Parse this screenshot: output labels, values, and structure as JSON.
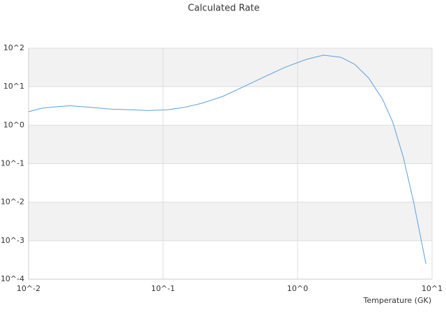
{
  "chart_data": {
    "type": "line",
    "title": "Calculated Rate",
    "x_label": "Temperature (GK)",
    "xscale": "log",
    "yscale": "log",
    "grid": true,
    "xlim": [
      0.01,
      10
    ],
    "ylim": [
      0.0001,
      100
    ],
    "xticks": [
      {
        "value": 0.01,
        "label": "10^-2"
      },
      {
        "value": 0.1,
        "label": "10^-1"
      },
      {
        "value": 1,
        "label": "10^0"
      },
      {
        "value": 10,
        "label": "10^1"
      }
    ],
    "yticks": [
      {
        "value": 0.0001,
        "label": "10^-4"
      },
      {
        "value": 0.001,
        "label": "10^-3"
      },
      {
        "value": 0.01,
        "label": "10^-2"
      },
      {
        "value": 0.1,
        "label": "10^-1"
      },
      {
        "value": 1,
        "label": "10^0"
      },
      {
        "value": 10,
        "label": "10^1"
      },
      {
        "value": 100,
        "label": "10^2"
      }
    ],
    "x": [
      0.01,
      0.0125,
      0.0159,
      0.0202,
      0.0288,
      0.0413,
      0.059,
      0.0776,
      0.107,
      0.144,
      0.194,
      0.278,
      0.397,
      0.567,
      0.81,
      1.16,
      1.56,
      2.1,
      2.66,
      3.37,
      4.27,
      5.1,
      6.1,
      7.3,
      9.0
    ],
    "series": [
      {
        "color": "#5aa0e0",
        "values": [
          2.24,
          2.75,
          3.0,
          3.2,
          2.9,
          2.6,
          2.5,
          2.4,
          2.5,
          2.9,
          3.7,
          5.6,
          10,
          18,
          32,
          51,
          66,
          58,
          38,
          17,
          4.8,
          1.2,
          0.15,
          0.01,
          0.00025
        ]
      }
    ]
  }
}
